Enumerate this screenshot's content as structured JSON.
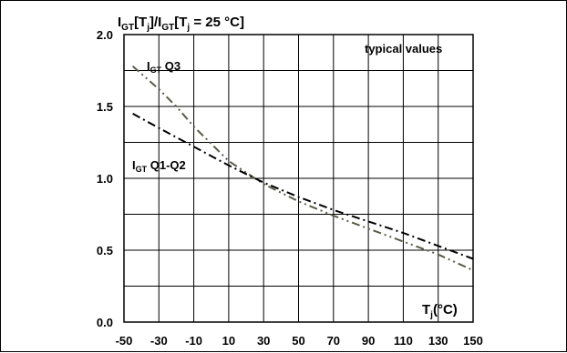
{
  "chart_data": {
    "type": "line",
    "title": "",
    "ylabel": {
      "main": "I",
      "sub1": "GT",
      "mid1": "[T",
      "sub2": "j",
      "mid2": "]/I",
      "sub3": "GT",
      "mid3": "[T",
      "sub4": "j",
      "end": " = 25 °C]"
    },
    "xlabel": {
      "main": "T",
      "sub": "j",
      "end": "(°C)"
    },
    "annotation": "typical values",
    "xlim": [
      -50,
      150
    ],
    "ylim": [
      0,
      2.0
    ],
    "xticks": [
      -50,
      -30,
      -10,
      10,
      30,
      50,
      70,
      90,
      110,
      130,
      150
    ],
    "xtick_labels": [
      "-50",
      "-30",
      "-10",
      "10",
      "30",
      "50",
      "70",
      "90",
      "110",
      "130",
      "150"
    ],
    "yticks": [
      0,
      0.5,
      1.0,
      1.5,
      2.0
    ],
    "ytick_labels": [
      "0.0",
      "0.5",
      "1.0",
      "1.5",
      "2.0"
    ],
    "grid": true,
    "series": [
      {
        "label_main": "I",
        "label_sub": "GT",
        "label_end": " Q3",
        "color": "#5a5a4a",
        "x": [
          -45,
          -30,
          -20,
          -10,
          0,
          10,
          20,
          30,
          50,
          70,
          90,
          110,
          130,
          150
        ],
        "y": [
          1.78,
          1.62,
          1.5,
          1.36,
          1.24,
          1.12,
          1.04,
          0.96,
          0.84,
          0.74,
          0.65,
          0.56,
          0.47,
          0.36
        ]
      },
      {
        "label_main": "I",
        "label_sub": "GT",
        "label_end": " Q1-Q2",
        "color": "#000000",
        "x": [
          -45,
          -30,
          -10,
          10,
          30,
          50,
          70,
          90,
          110,
          130,
          150
        ],
        "y": [
          1.45,
          1.35,
          1.22,
          1.09,
          0.97,
          0.87,
          0.78,
          0.7,
          0.62,
          0.53,
          0.44
        ]
      }
    ]
  }
}
